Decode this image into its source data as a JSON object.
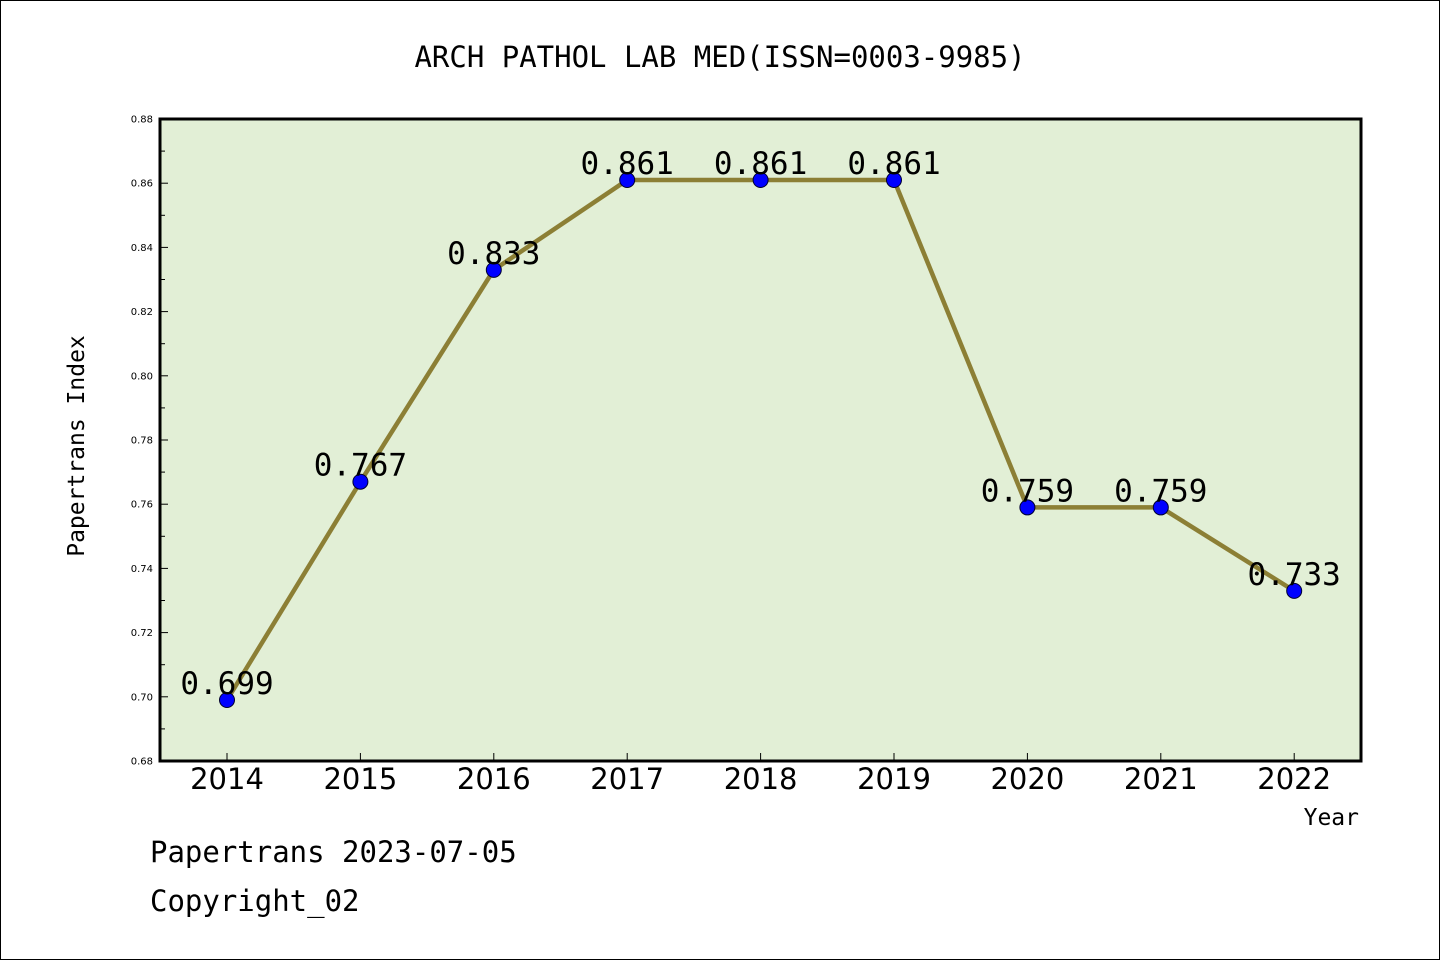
{
  "chart_data": {
    "type": "line",
    "title": "ARCH PATHOL LAB MED(ISSN=0003-9985)",
    "xlabel": "Year",
    "ylabel": "Papertrans Index",
    "categories": [
      "2014",
      "2015",
      "2016",
      "2017",
      "2018",
      "2019",
      "2020",
      "2021",
      "2022"
    ],
    "series": [
      {
        "values": [
          0.699,
          0.767,
          0.833,
          0.861,
          0.861,
          0.861,
          0.759,
          0.759,
          0.733
        ]
      }
    ],
    "data_labels": [
      "0.699",
      "0.767",
      "0.833",
      "0.861",
      "0.861",
      "0.861",
      "0.759",
      "0.759",
      "0.733"
    ],
    "ylim": [
      0.68,
      0.88
    ],
    "yticks": [
      "0.68",
      "0.70",
      "0.72",
      "0.74",
      "0.76",
      "0.78",
      "0.80",
      "0.82",
      "0.84",
      "0.86",
      "0.88"
    ],
    "grid": false,
    "colors": {
      "plot_background": "#e2efd6",
      "line": "#8c7f35",
      "marker": "#0000ff"
    }
  },
  "footer": {
    "line1": "Papertrans 2023-07-05",
    "line2": "Copyright_02"
  }
}
